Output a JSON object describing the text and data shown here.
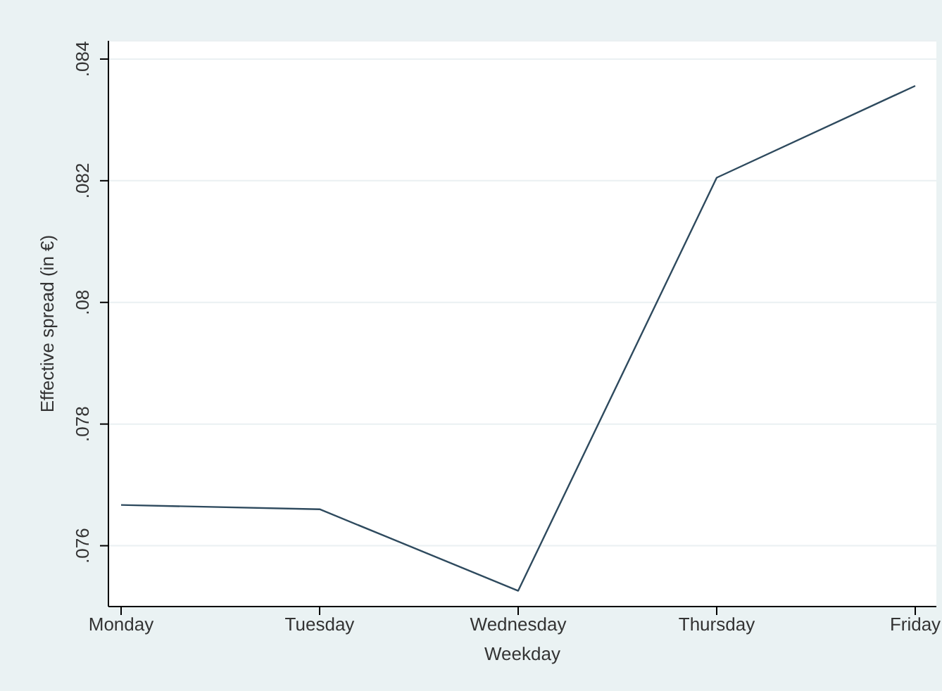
{
  "chart_data": {
    "type": "line",
    "xlabel": "Weekday",
    "ylabel": "Effective spread (in €)",
    "categories": [
      "Monday",
      "Tuesday",
      "Wednesday",
      "Thursday",
      "Friday"
    ],
    "series": [
      {
        "color": "#2e4a5e",
        "values": [
          0.07667,
          0.0766,
          0.07526,
          0.08205,
          0.08356
        ]
      }
    ],
    "ylim": [
      0.075,
      0.0843
    ],
    "yticks": [
      {
        "value": 0.076,
        "label": ".076"
      },
      {
        "value": 0.078,
        "label": ".078"
      },
      {
        "value": 0.08,
        "label": ".08"
      },
      {
        "value": 0.082,
        "label": ".082"
      },
      {
        "value": 0.084,
        "label": ".084"
      }
    ],
    "grid": "y",
    "legend": false,
    "marker": "none",
    "line_style": "solid"
  }
}
